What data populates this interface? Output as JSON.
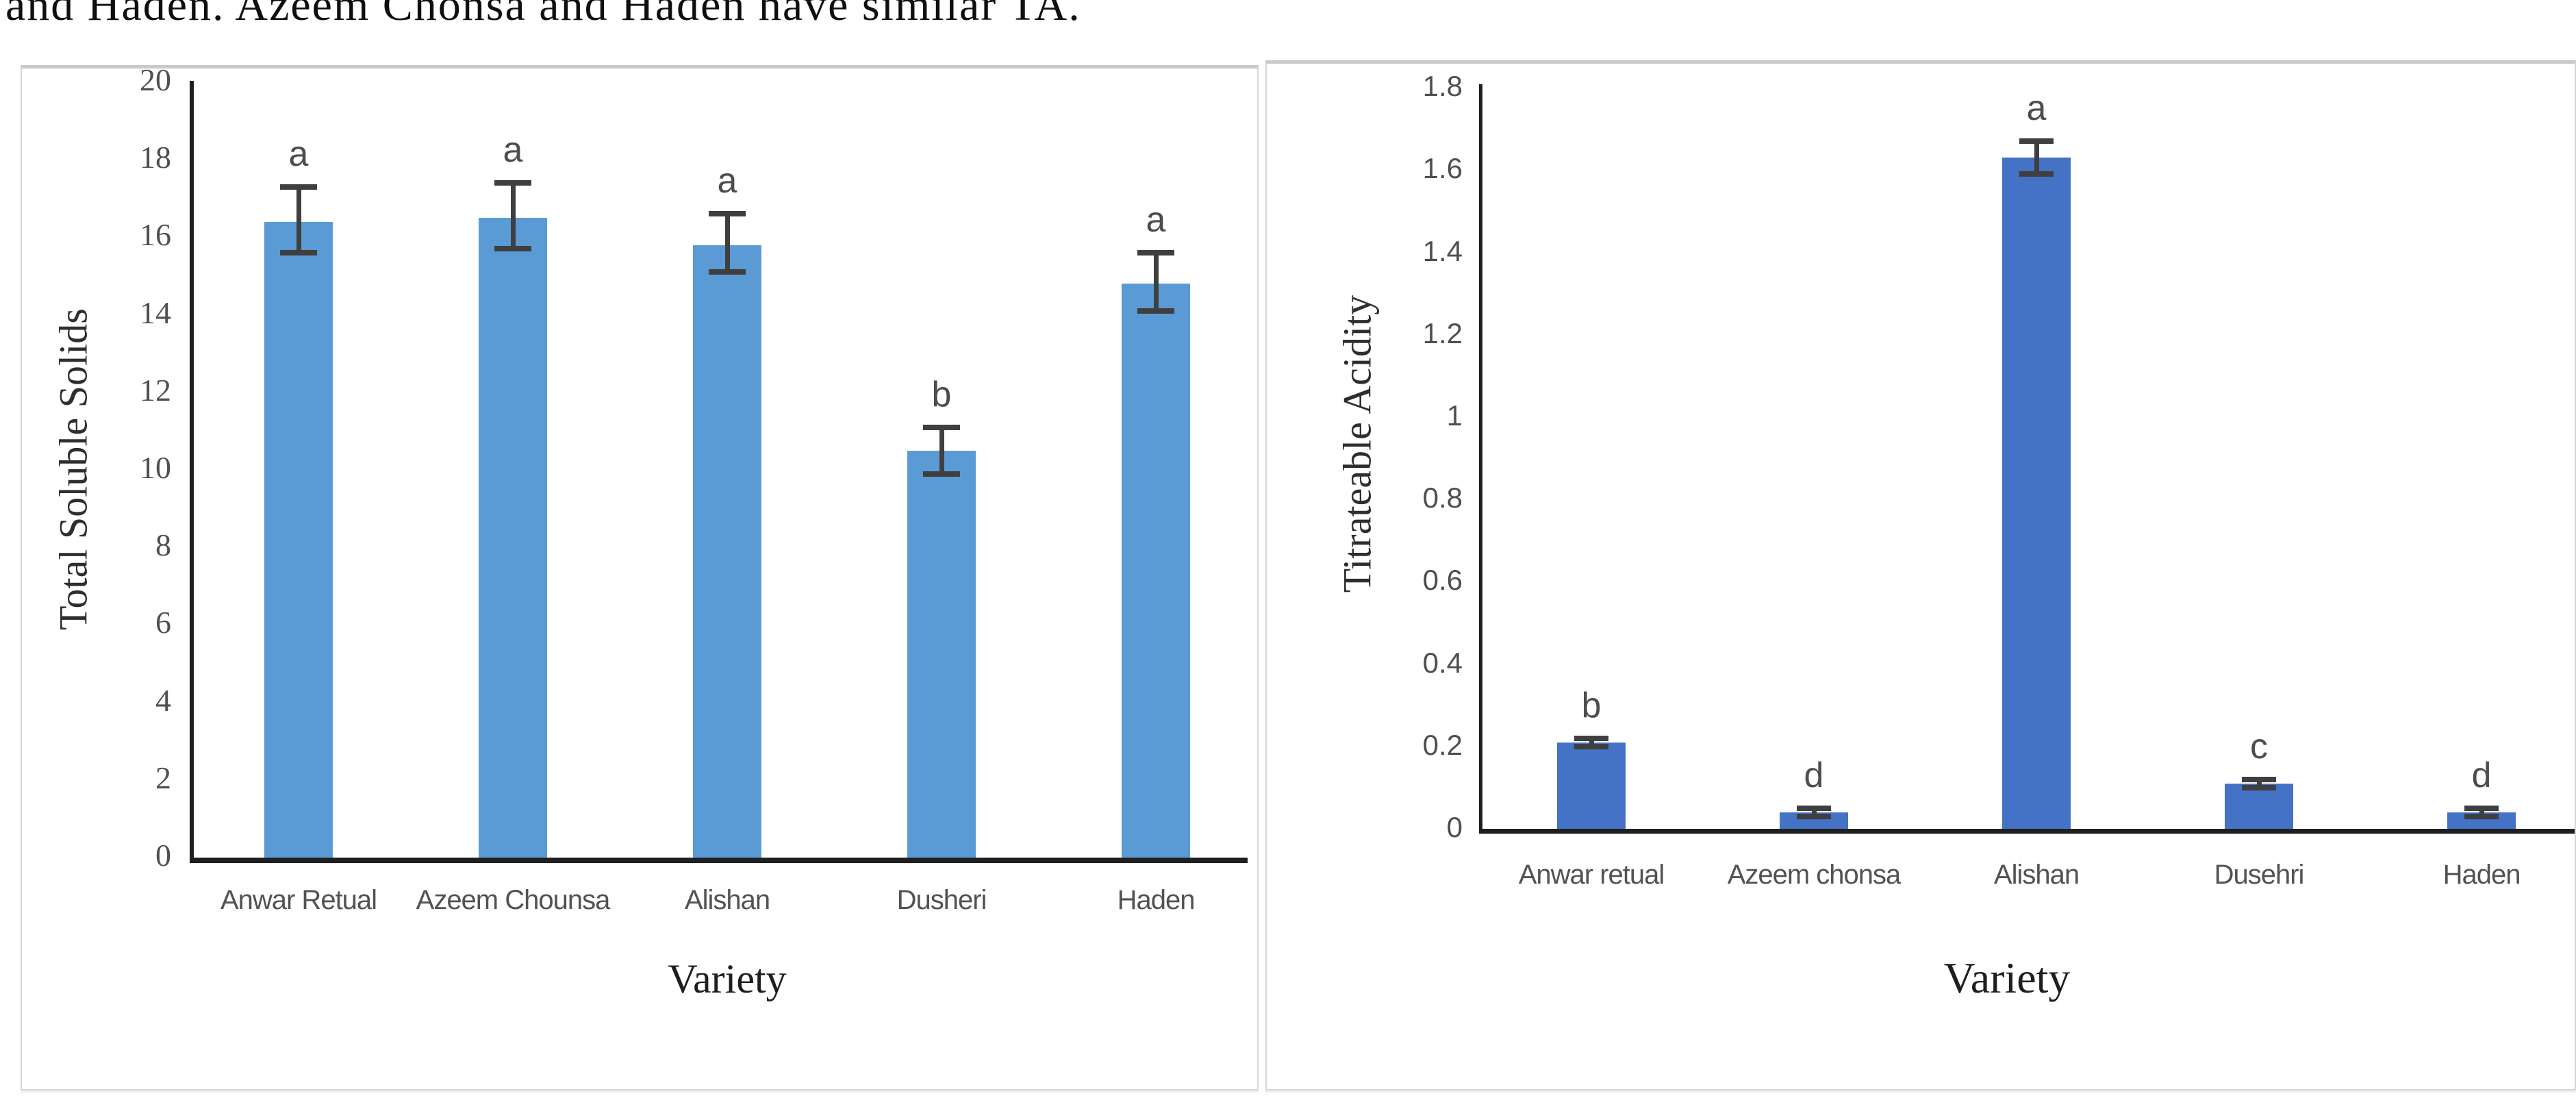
{
  "caption": {
    "text": "and Haden. Azeem Chonsa and Haden have similar TA."
  },
  "colors": {
    "left_bar": "#5B9BD5",
    "right_bar": "#4472C4",
    "error_bar": "#3F3F3F",
    "axis_line": "#1F1F1F",
    "tick_text": "#4F4F4F",
    "panel_border": "#D6D6D6"
  },
  "chart_data": [
    {
      "type": "bar",
      "title": "",
      "categories": [
        "Anwar Retual",
        "Azeem Chounsa",
        "Alishan",
        "Dusheri",
        "Haden"
      ],
      "values": [
        16.4,
        16.5,
        15.8,
        10.5,
        14.8
      ],
      "error_high": [
        17.3,
        17.4,
        16.6,
        11.1,
        15.6
      ],
      "error_low": [
        15.6,
        15.7,
        15.1,
        9.9,
        14.1
      ],
      "sig_letters": [
        "a",
        "a",
        "a",
        "b",
        "a"
      ],
      "xlabel": "Variety",
      "ylabel": "Total Soluble Solids",
      "ylim": [
        0,
        20
      ],
      "ytick_step": 2,
      "grid": false,
      "legend": "none",
      "bar_color": "#5B9BD5"
    },
    {
      "type": "bar",
      "title": "",
      "categories": [
        "Anwar retual",
        "Azeem chonsa",
        "Alishan",
        "Dusehri",
        "Haden"
      ],
      "values": [
        0.21,
        0.04,
        1.63,
        0.11,
        0.04
      ],
      "error_high": [
        0.22,
        0.05,
        1.67,
        0.12,
        0.05
      ],
      "error_low": [
        0.2,
        0.03,
        1.59,
        0.1,
        0.03
      ],
      "sig_letters": [
        "b",
        "d",
        "a",
        "c",
        "d"
      ],
      "xlabel": "Variety",
      "ylabel": "Titrateable Acidity",
      "ylim": [
        0,
        1.8
      ],
      "ytick_step": 0.2,
      "grid": false,
      "legend": "none",
      "bar_color": "#4472C4"
    }
  ]
}
